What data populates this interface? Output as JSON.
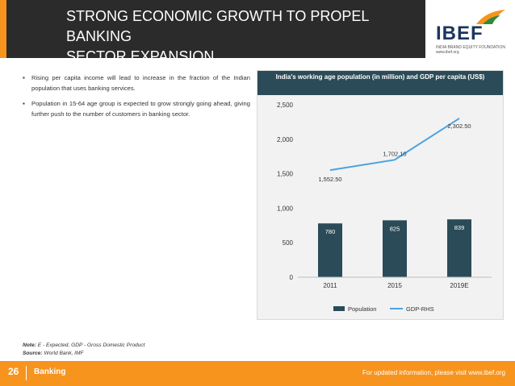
{
  "header": {
    "title_line1": "STRONG ECONOMIC GROWTH TO PROPEL BANKING",
    "title_line2": "SECTOR EXPANSION",
    "logo_text": "IBEF",
    "logo_tagline": "INDIA BRAND EQUITY FOUNDATION",
    "logo_url": "www.ibef.org"
  },
  "bullets": [
    "Rising per capita income will lead to increase in the fraction of the Indian population that uses banking services.",
    "Population in 15-64 age group is expected to grow strongly going ahead, giving further push to the number of customers in banking sector."
  ],
  "chart_data": {
    "type": "bar",
    "title": "India's working age population (in million) and GDP per capita (US$)",
    "categories": [
      "2011",
      "2015",
      "2019E"
    ],
    "series": [
      {
        "name": "Population",
        "type": "bar",
        "values": [
          780,
          825,
          839
        ],
        "labels": [
          "780",
          "825",
          "839"
        ]
      },
      {
        "name": "GDP-RHS",
        "type": "line",
        "values": [
          1552.5,
          1702.1,
          2302.5
        ],
        "labels": [
          "1,552.50",
          "1,702.10",
          "2,302.50"
        ]
      }
    ],
    "yticks": [
      "0",
      "500",
      "1,000",
      "1,500",
      "2,000",
      "2,500"
    ],
    "ylim": [
      0,
      2500
    ],
    "legend_position": "bottom",
    "bar_color": "#2a4b57",
    "line_color": "#4aa3df"
  },
  "notes": {
    "note_label": "Note:",
    "note_text": "E - Expected, GDP - Gross Domestic Product",
    "source_label": "Source:",
    "source_text": "World Bank, IMF"
  },
  "footer": {
    "page_number": "26",
    "section": "Banking",
    "url_text": "For updated information, please visit www.ibef.org"
  }
}
